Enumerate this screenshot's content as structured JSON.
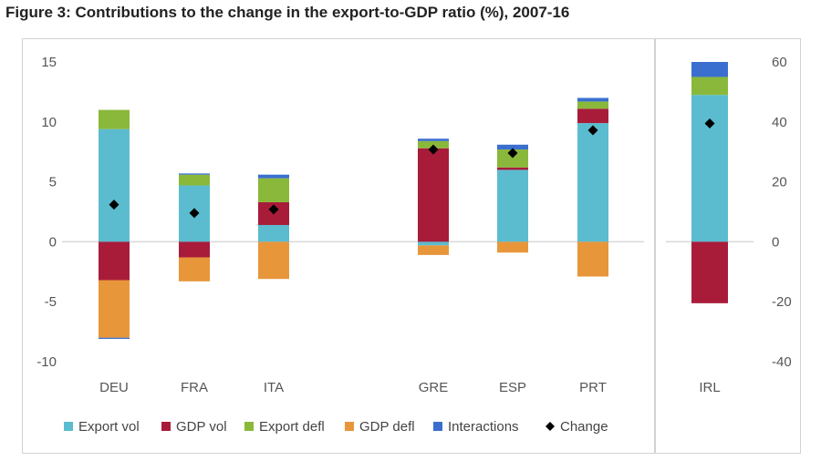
{
  "title": "Figure 3: Contributions to the change in the export-to-GDP ratio (%), 2007-16",
  "chart_data": [
    {
      "type": "bar",
      "stacked": true,
      "panel": "left",
      "categories": [
        "DEU",
        "FRA",
        "ITA",
        "",
        "GRE",
        "ESP",
        "PRT"
      ],
      "ylim": [
        -10,
        15
      ],
      "yticks": [
        -10,
        -5,
        0,
        5,
        10,
        15
      ],
      "series": [
        {
          "name": "Export vol",
          "color": "#5bbcd0",
          "values": [
            9.4,
            4.7,
            1.4,
            null,
            -0.3,
            6.0,
            9.9
          ]
        },
        {
          "name": "GDP vol",
          "color": "#a81c3a",
          "values": [
            -3.2,
            -1.3,
            1.9,
            null,
            7.8,
            0.2,
            1.2
          ]
        },
        {
          "name": "Export defl",
          "color": "#8ab83a",
          "values": [
            1.6,
            0.9,
            2.0,
            null,
            0.6,
            1.5,
            0.6
          ]
        },
        {
          "name": "GDP defl",
          "color": "#e8963a",
          "values": [
            -4.8,
            -2.0,
            -3.1,
            null,
            -0.8,
            -0.9,
            -2.9
          ]
        },
        {
          "name": "Interactions",
          "color": "#3a6fd0",
          "values": [
            -0.1,
            0.1,
            0.3,
            null,
            0.2,
            0.4,
            0.3
          ]
        }
      ],
      "markers": {
        "name": "Change",
        "values": [
          3.1,
          2.4,
          2.7,
          null,
          7.7,
          7.4,
          9.3
        ]
      }
    },
    {
      "type": "bar",
      "stacked": true,
      "panel": "right",
      "categories": [
        "IRL"
      ],
      "ylim": [
        -40,
        60
      ],
      "yticks": [
        -40,
        -20,
        0,
        20,
        40,
        60
      ],
      "series": [
        {
          "name": "Export vol",
          "color": "#5bbcd0",
          "values": [
            49
          ]
        },
        {
          "name": "GDP vol",
          "color": "#a81c3a",
          "values": [
            -20.5
          ]
        },
        {
          "name": "Export defl",
          "color": "#8ab83a",
          "values": [
            6
          ]
        },
        {
          "name": "Interactions",
          "color": "#3a6fd0",
          "values": [
            5
          ]
        }
      ],
      "markers": {
        "name": "Change",
        "values": [
          39.5
        ]
      }
    }
  ],
  "legend": [
    {
      "label": "Export vol",
      "color": "#5bbcd0",
      "kind": "square"
    },
    {
      "label": "GDP vol",
      "color": "#a81c3a",
      "kind": "square"
    },
    {
      "label": "Export defl",
      "color": "#8ab83a",
      "kind": "square"
    },
    {
      "label": "GDP defl",
      "color": "#e8963a",
      "kind": "square"
    },
    {
      "label": "Interactions",
      "color": "#3a6fd0",
      "kind": "square"
    },
    {
      "label": "Change",
      "color": "#000000",
      "kind": "diamond"
    }
  ]
}
